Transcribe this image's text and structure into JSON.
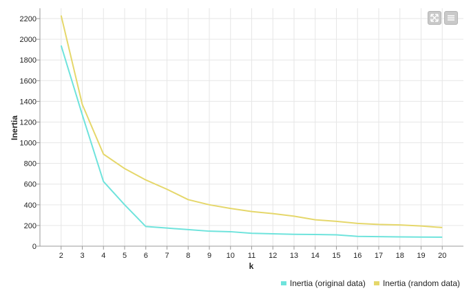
{
  "chart_data": {
    "type": "line",
    "xlabel": "k",
    "ylabel": "Inertia",
    "x": [
      2,
      3,
      4,
      5,
      6,
      7,
      8,
      9,
      10,
      11,
      12,
      13,
      14,
      15,
      16,
      17,
      18,
      19,
      20
    ],
    "xlim": [
      1,
      21
    ],
    "ylim": [
      0,
      2300
    ],
    "yticks": [
      0,
      200,
      400,
      600,
      800,
      1000,
      1200,
      1400,
      1600,
      1800,
      2000,
      2200
    ],
    "grid": true,
    "legend_position": "bottom-right",
    "series": [
      {
        "name": "Inertia (original data)",
        "color": "#6ee3dc",
        "values": [
          1940,
          1270,
          625,
          400,
          190,
          175,
          160,
          145,
          140,
          125,
          120,
          115,
          113,
          110,
          95,
          92,
          90,
          88,
          87
        ]
      },
      {
        "name": "Inertia (random data)",
        "color": "#e5d76a",
        "values": [
          2230,
          1370,
          890,
          750,
          640,
          550,
          450,
          400,
          365,
          335,
          315,
          290,
          255,
          240,
          220,
          210,
          205,
          195,
          180
        ]
      }
    ]
  },
  "toolbar": {
    "fullscreen_icon": "fullscreen-icon",
    "menu_icon": "menu-icon"
  }
}
